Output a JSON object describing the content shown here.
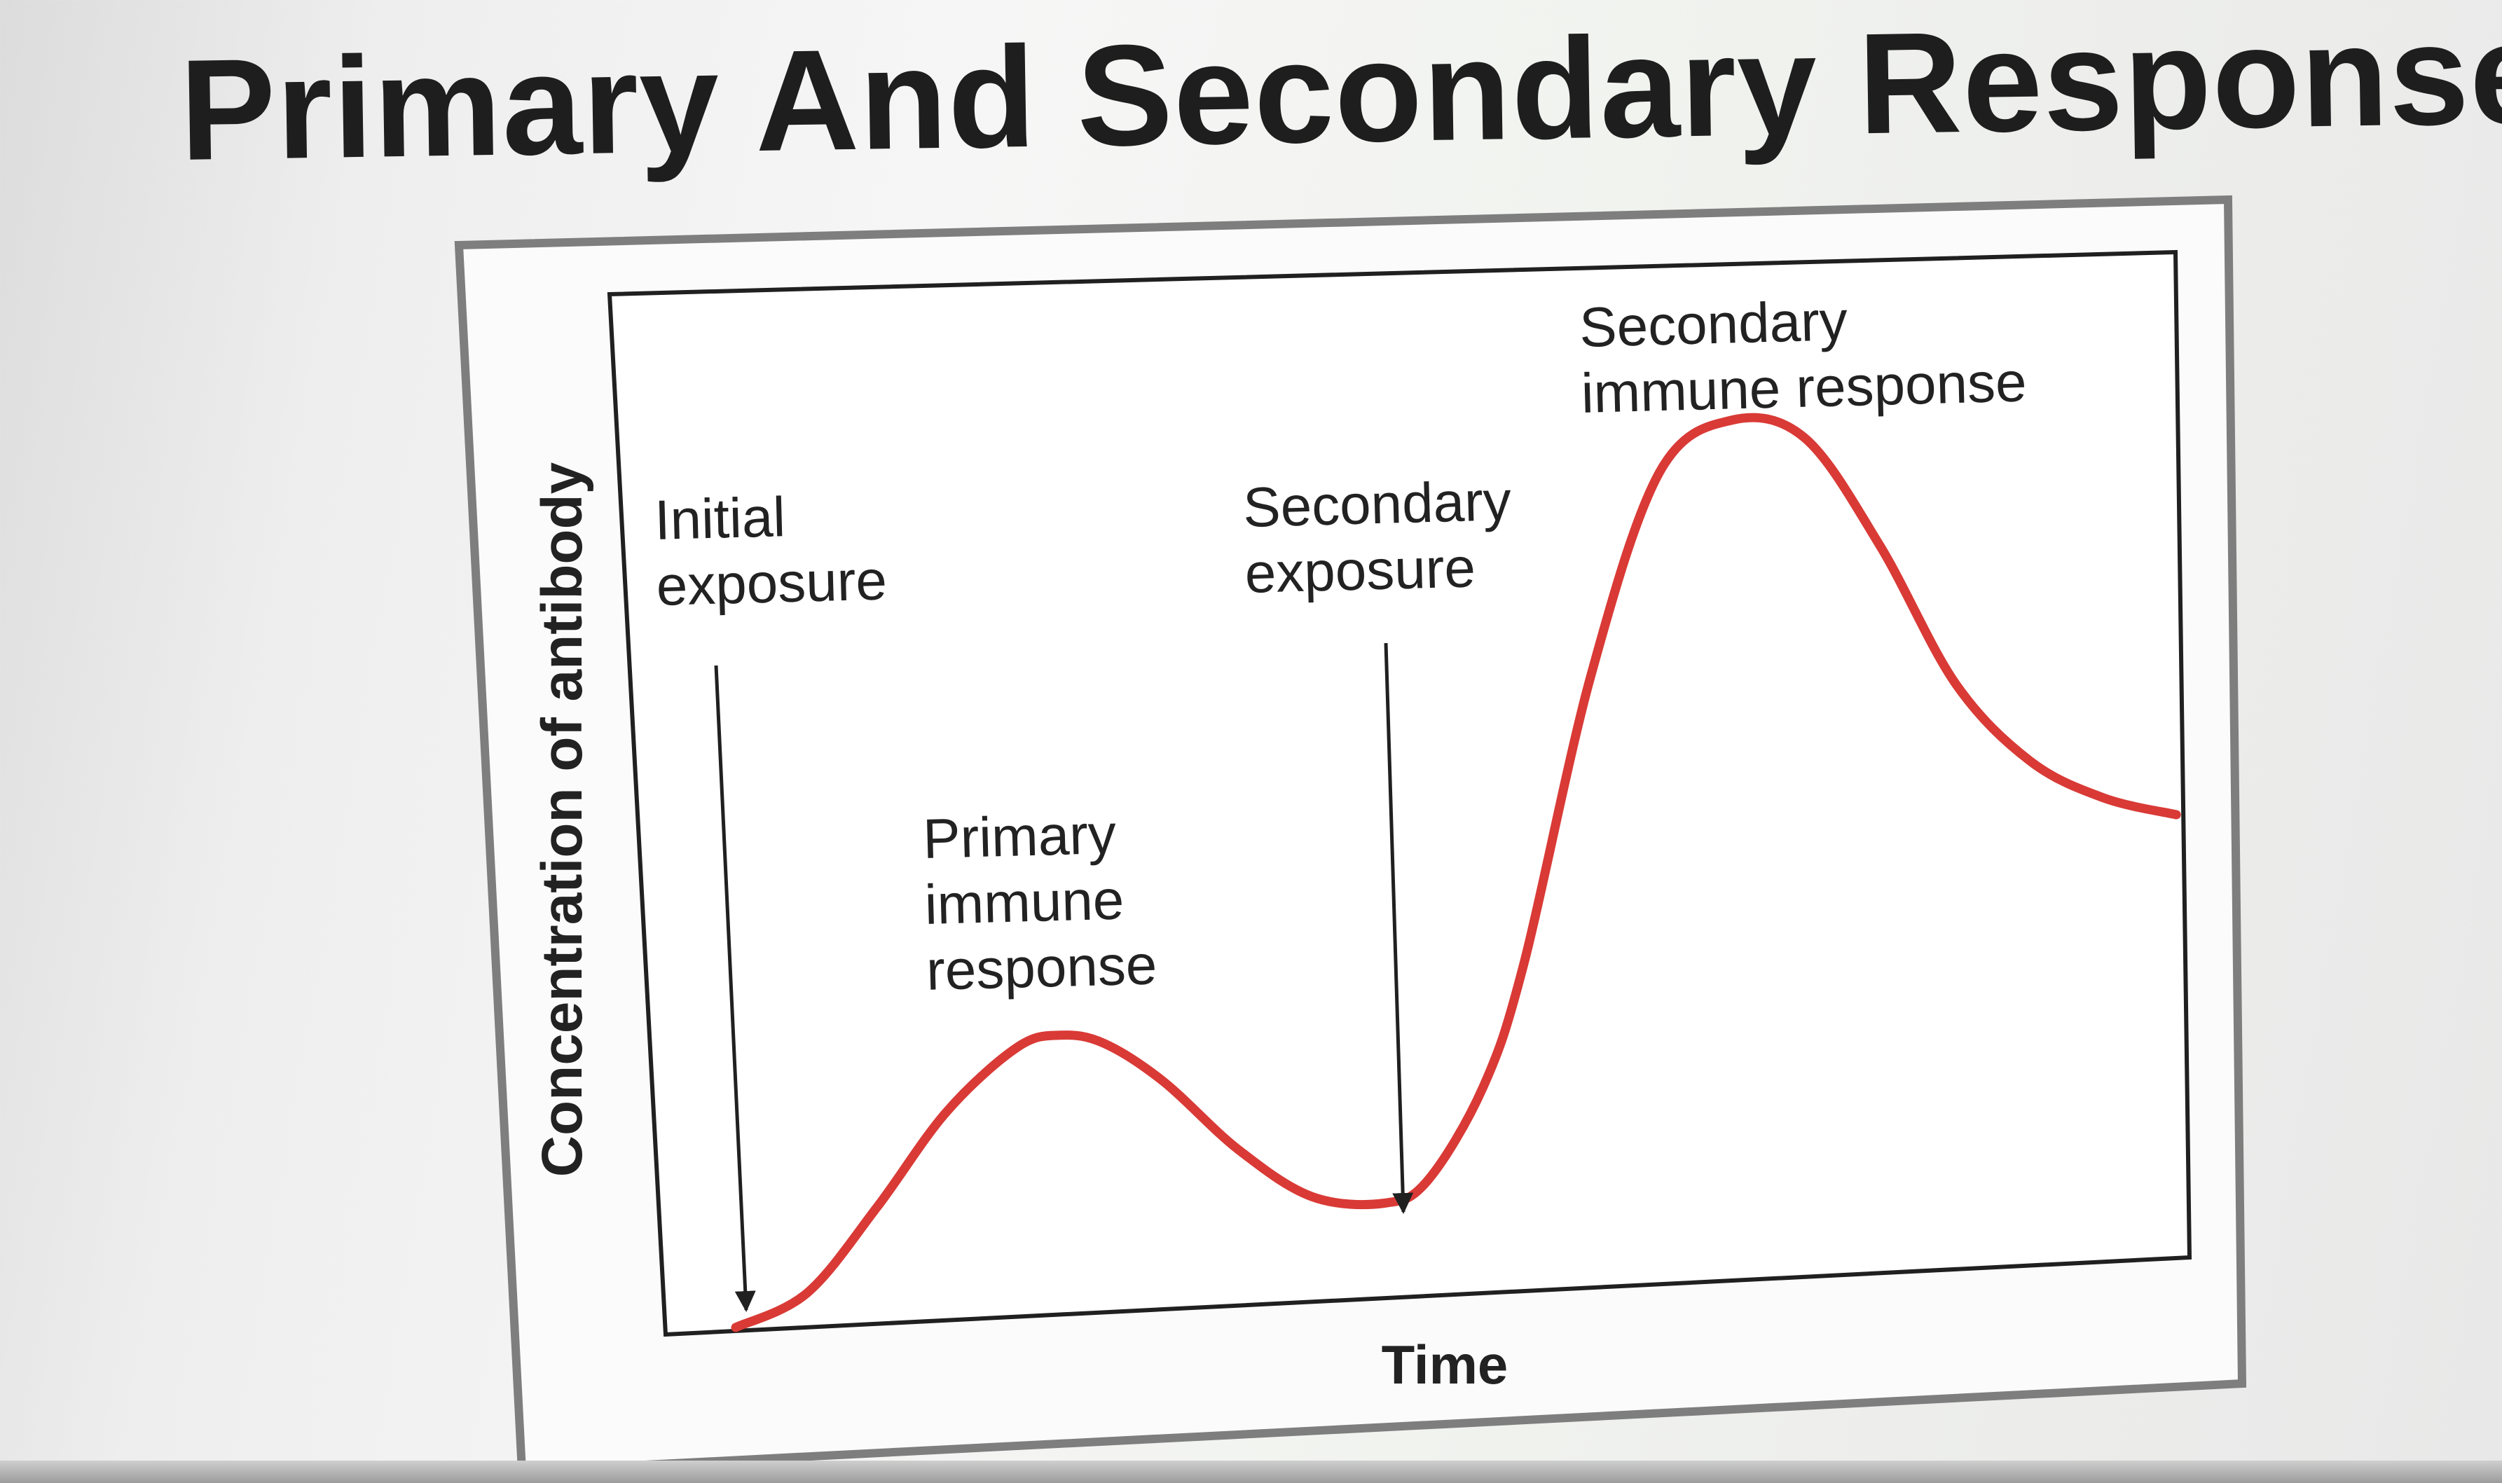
{
  "title": "Primary And Secondary Response",
  "chart_data": {
    "type": "line",
    "title": "",
    "xlabel": "Time",
    "ylabel": "Concentration of antibody",
    "ticks": "none",
    "grid": false,
    "series": [
      {
        "color": "#d93a36",
        "x": [
          0,
          5,
          10,
          15,
          20,
          23,
          26,
          30,
          35,
          40,
          45,
          48,
          52,
          55,
          60,
          65,
          70,
          75,
          80,
          85,
          90,
          95,
          100
        ],
        "y": [
          0,
          3,
          11,
          20,
          26,
          27,
          26,
          22,
          15,
          10,
          9,
          11,
          20,
          32,
          60,
          80,
          85,
          83,
          72,
          58,
          50,
          46,
          44
        ]
      }
    ],
    "annotations": {
      "initial_exposure": "Initial\nexposure",
      "secondary_exposure": "Secondary\nexposure",
      "primary_response": "Primary\nimmune\nresponse",
      "secondary_response": "Secondary\nimmune response"
    },
    "exposure_events": [
      {
        "label": "Initial exposure",
        "x": 0
      },
      {
        "label": "Secondary exposure",
        "x": 44
      }
    ]
  },
  "colors": {
    "curve": "#d93a36",
    "axis": "#202020",
    "frame": "#7e7e7e",
    "text": "#222222"
  }
}
